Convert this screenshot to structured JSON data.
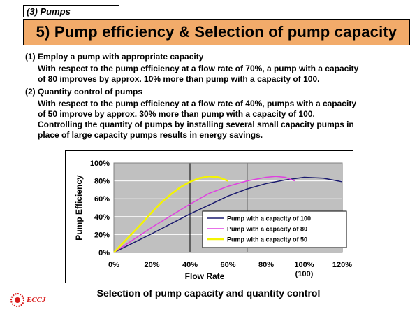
{
  "header": {
    "section_tag": "(3) Pumps",
    "title": "5) Pump efficiency & Selection of pump capacity"
  },
  "body": {
    "item1_heading": "(1) Employ a pump with appropriate capacity",
    "item1_line1": "With respect to the pump efficiency at a flow rate of 70%, a pump with a capacity",
    "item1_line2": "of 80 improves by approx. 10% more than pump with a capacity of 100.",
    "item2_heading": "(2) Quantity control of pumps",
    "item2_line1": "With respect to the pump efficiency at a flow rate of 40%,  pumps with a capacity",
    "item2_line2": "of 50 improve by approx. 30% more than pump with a capacity of 100.",
    "item2_line3": "Controlling the quantity of pumps by installing several small capacity pumps in",
    "item2_line4": "place of large capacity pumps results in energy savings."
  },
  "chart_data": {
    "type": "line",
    "xlabel": "Flow Rate",
    "ylabel": "Pump Efficiency",
    "xlim": [
      0,
      120
    ],
    "ylim": [
      0,
      100
    ],
    "x_ticks": [
      "0%",
      "20%",
      "40%",
      "60%",
      "80%",
      "100%",
      "120%"
    ],
    "x_tick_sublabel": {
      "at": 100,
      "text": "(100)"
    },
    "y_ticks": [
      "0%",
      "20%",
      "40%",
      "60%",
      "80%",
      "100%"
    ],
    "reference_lines_x": [
      40,
      70
    ],
    "plot_background": "#c0c0c0",
    "series": [
      {
        "name": "Pump with a capacity of 100",
        "color": "#1a1a6e",
        "x": [
          0,
          10,
          20,
          30,
          40,
          50,
          60,
          70,
          80,
          90,
          100,
          110,
          120
        ],
        "y": [
          0,
          10.5,
          21,
          32,
          43,
          53,
          63,
          71,
          77,
          81,
          84,
          83,
          79
        ]
      },
      {
        "name": "Pump with a capacity of 80",
        "color": "#e040e0",
        "x": [
          0,
          10,
          20,
          30,
          40,
          50,
          60,
          70,
          80,
          85,
          90,
          95
        ],
        "y": [
          0,
          14,
          28,
          41,
          54,
          66,
          74,
          80,
          84,
          85,
          84,
          80
        ]
      },
      {
        "name": "Pump with a capacity of 50",
        "color": "#f4f400",
        "x": [
          0,
          5,
          10,
          15,
          20,
          25,
          30,
          35,
          40,
          45,
          50,
          55,
          60
        ],
        "y": [
          0,
          11,
          22,
          33,
          45,
          56,
          65,
          73,
          79,
          83,
          85,
          84,
          80
        ]
      }
    ],
    "legend_position": "bottom-right"
  },
  "caption": "Selection of pump capacity and quantity control",
  "logo": {
    "text": "ECCJ",
    "color": "#d91c1c"
  }
}
